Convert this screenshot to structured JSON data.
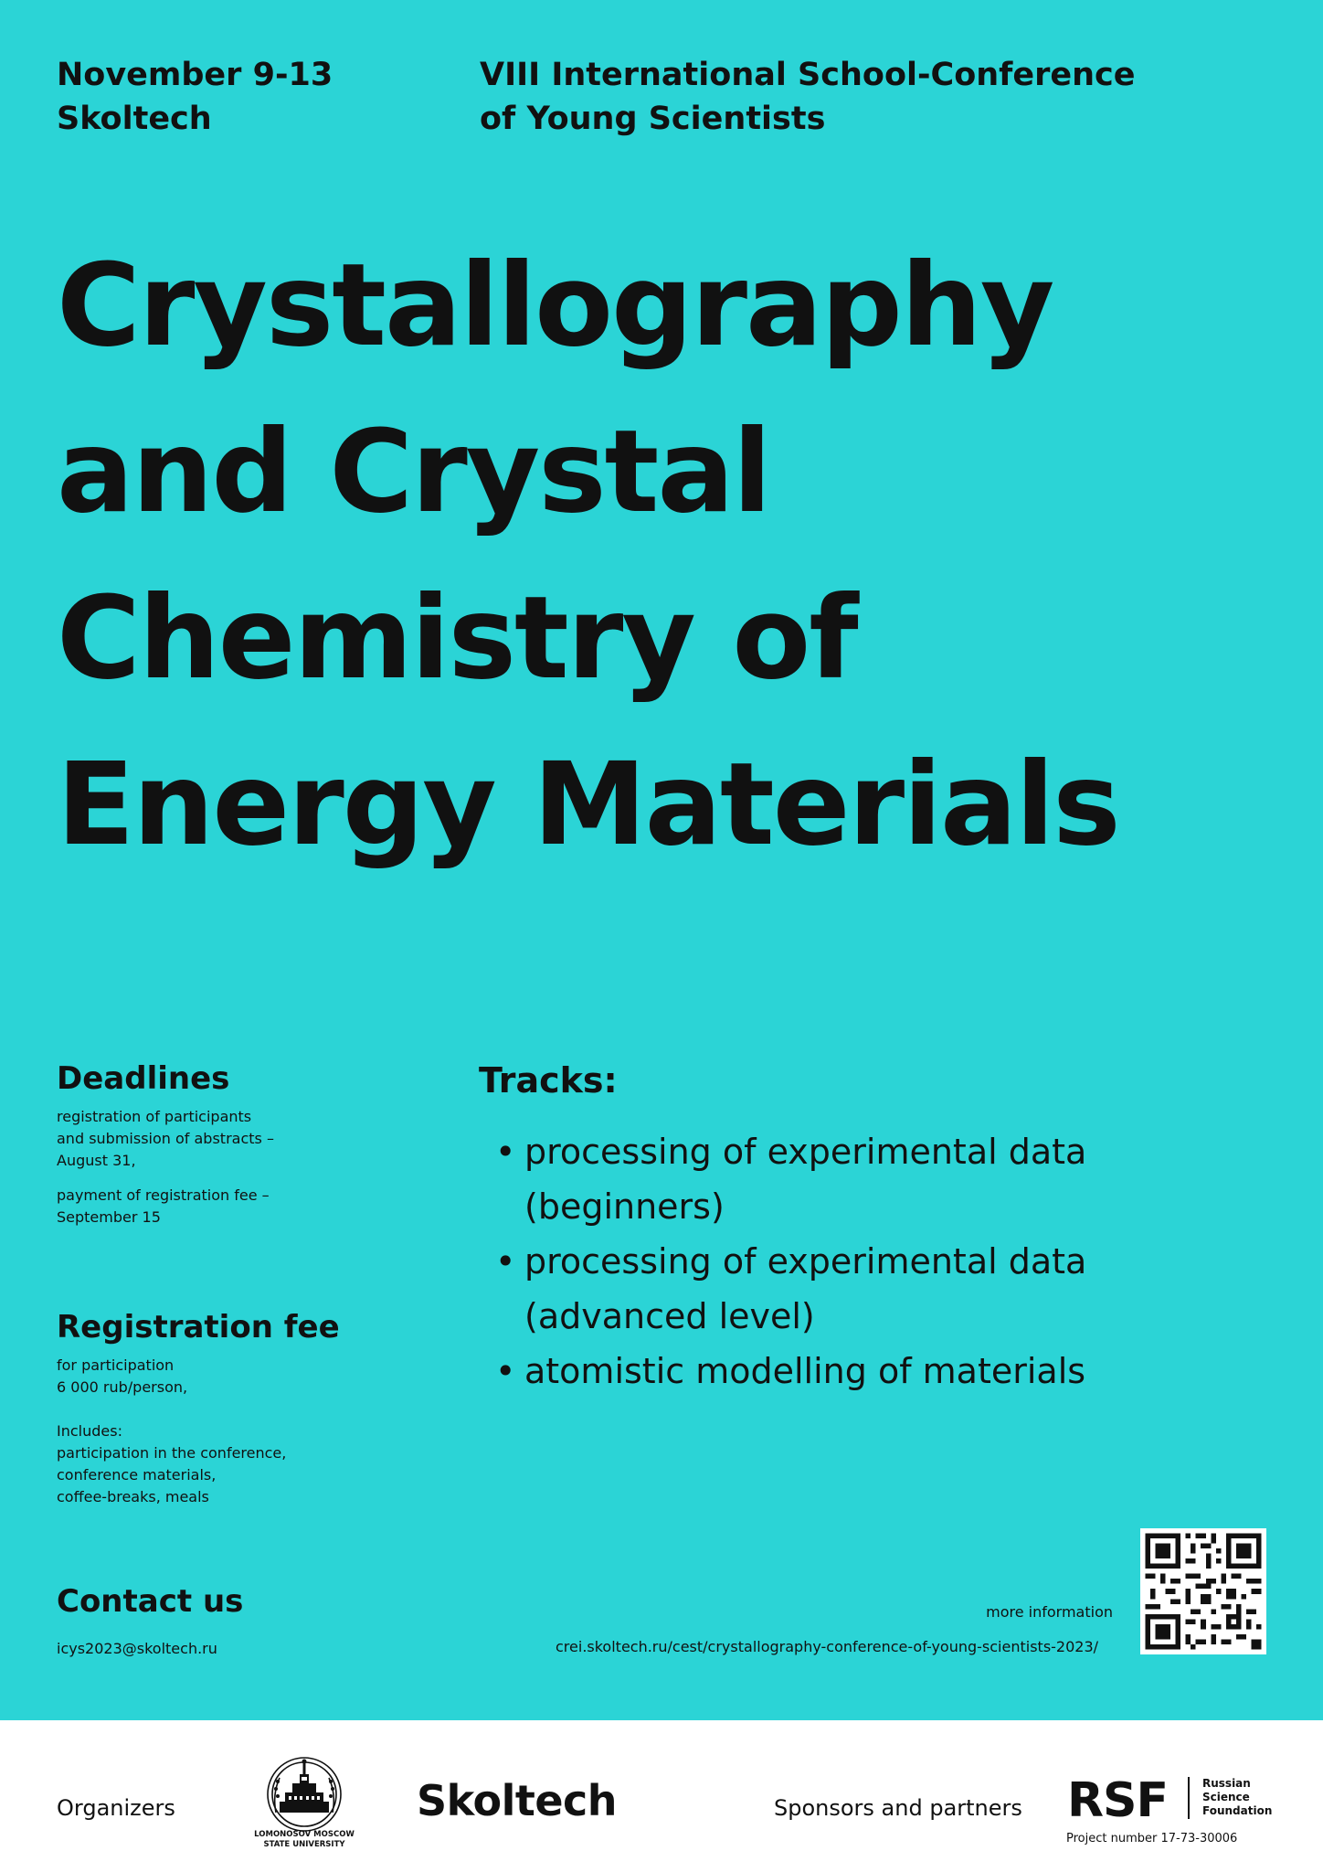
{
  "header": {
    "dates": "November 9-13",
    "venue": "Skoltech",
    "event_line1": "VIII International School-Conference",
    "event_line2": "of Young Scientists"
  },
  "title": {
    "line1": "Crystallography",
    "line2": "and Crystal",
    "line3": "Chemistry of",
    "line4": "Energy Materials"
  },
  "deadlines": {
    "heading": "Deadlines",
    "item1_line1": "registration of participants",
    "item1_line2": "and submission of abstracts –",
    "item1_line3": "August 31,",
    "item2_line1": "payment of registration fee –",
    "item2_line2": "September 15"
  },
  "registration_fee": {
    "heading": "Registration fee",
    "line1": "for participation",
    "line2": "6 000 rub/person,",
    "includes_label": "Includes:",
    "includes_line1": "participation in the conference,",
    "includes_line2": "conference materials,",
    "includes_line3": "coffee-breaks, meals"
  },
  "tracks": {
    "heading": "Tracks:",
    "items": [
      {
        "line1": "processing of experimental data",
        "line2": "(beginners)"
      },
      {
        "line1": "processing of experimental data",
        "line2": "(advanced level)"
      },
      {
        "line1": "atomistic modelling of materials",
        "line2": ""
      }
    ]
  },
  "contact": {
    "heading": "Contact us",
    "email": "icys2023@skoltech.ru"
  },
  "more_info": {
    "label": "more information",
    "url": "crei.skoltech.ru/cest/crystallography-conference-of-young-scientists-2023/"
  },
  "footer": {
    "organizers_label": "Organizers",
    "msu_caption_line1": "LOMONOSOV MOSCOW",
    "msu_caption_line2": "STATE UNIVERSITY",
    "skoltech_logo": "Skoltech",
    "sponsors_label": "Sponsors and partners",
    "rsf_logo": "RSF",
    "rsf_name_line1": "Russian",
    "rsf_name_line2": "Science",
    "rsf_name_line3": "Foundation",
    "rsf_project": "Project number 17-73-30006"
  },
  "colors": {
    "background": "#2bd4d6",
    "text": "#111111",
    "footer_background": "#ffffff"
  }
}
